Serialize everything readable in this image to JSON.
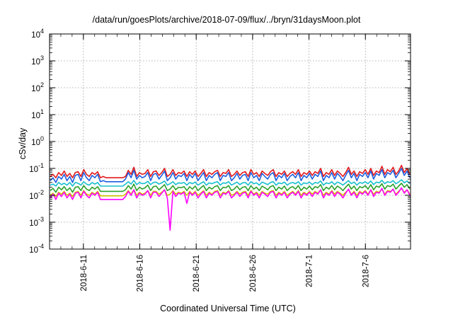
{
  "chart_data": {
    "type": "line",
    "title": "/data/run/goesPlots/archive/2018-07-09/flux/../bryn/31daysMoon.plot",
    "xlabel": "Coordinated Universal Time (UTC)",
    "ylabel": "cSv/day",
    "y_scale": "log",
    "ylim": [
      0.0001,
      10000
    ],
    "xlim": [
      "2018-06-08",
      "2018-07-10"
    ],
    "grid": true,
    "y_ticks": [
      {
        "base": "10",
        "exp": "-4",
        "value": 0.0001
      },
      {
        "base": "10",
        "exp": "-3",
        "value": 0.001
      },
      {
        "base": "10",
        "exp": "-2",
        "value": 0.01
      },
      {
        "base": "10",
        "exp": "-1",
        "value": 0.1
      },
      {
        "base": "10",
        "exp": "0",
        "value": 1
      },
      {
        "base": "10",
        "exp": "1",
        "value": 10
      },
      {
        "base": "10",
        "exp": "2",
        "value": 100
      },
      {
        "base": "10",
        "exp": "3",
        "value": 1000
      },
      {
        "base": "10",
        "exp": "4",
        "value": 10000
      }
    ],
    "x_ticks": [
      {
        "label": "2018-6-11",
        "date": "2018-06-11"
      },
      {
        "label": "2018-6-16",
        "date": "2018-06-16"
      },
      {
        "label": "2018-6-21",
        "date": "2018-06-21"
      },
      {
        "label": "2018-6-26",
        "date": "2018-06-26"
      },
      {
        "label": "2018-7-1",
        "date": "2018-07-01"
      },
      {
        "label": "2018-7-6",
        "date": "2018-07-06"
      }
    ],
    "series": [
      {
        "color": "#e31a1c",
        "values": [
          0.05,
          0.06,
          0.045,
          0.07,
          0.055,
          0.08,
          0.05,
          0.065,
          0.045,
          0.07,
          0.075,
          0.05,
          0.09,
          0.06,
          0.05,
          0.07,
          0.06,
          0.075,
          0.045,
          0.05,
          0.045,
          0.045,
          0.045,
          0.045,
          0.045,
          0.045,
          0.045,
          0.05,
          0.085,
          0.06,
          0.11,
          0.05,
          0.07,
          0.06,
          0.065,
          0.09,
          0.05,
          0.075,
          0.08,
          0.055,
          0.07,
          0.1,
          0.05,
          0.06,
          0.09,
          0.055,
          0.07,
          0.065,
          0.08,
          0.05,
          0.075,
          0.06,
          0.08,
          0.05,
          0.065,
          0.09,
          0.05,
          0.07,
          0.06,
          0.075,
          0.085,
          0.05,
          0.07,
          0.065,
          0.09,
          0.05,
          0.06,
          0.08,
          0.055,
          0.07,
          0.075,
          0.05,
          0.09,
          0.06,
          0.07,
          0.05,
          0.08,
          0.065,
          0.055,
          0.075,
          0.09,
          0.05,
          0.07,
          0.06,
          0.08,
          0.05,
          0.065,
          0.075,
          0.06,
          0.09,
          0.05,
          0.07,
          0.06,
          0.08,
          0.055,
          0.075,
          0.065,
          0.1,
          0.05,
          0.07,
          0.06,
          0.09,
          0.055,
          0.08,
          0.065,
          0.05,
          0.07,
          0.11,
          0.06,
          0.08,
          0.05,
          0.075,
          0.065,
          0.09,
          0.06,
          0.1,
          0.055,
          0.08,
          0.07,
          0.12,
          0.06,
          0.09,
          0.075,
          0.11,
          0.06,
          0.08,
          0.13,
          0.07,
          0.1,
          0.06
        ]
      },
      {
        "color": "#1f5fe0",
        "values": [
          0.035,
          0.045,
          0.03,
          0.05,
          0.04,
          0.06,
          0.035,
          0.05,
          0.03,
          0.055,
          0.06,
          0.035,
          0.07,
          0.045,
          0.035,
          0.055,
          0.045,
          0.06,
          0.032,
          0.035,
          0.032,
          0.032,
          0.032,
          0.032,
          0.032,
          0.032,
          0.032,
          0.04,
          0.07,
          0.045,
          0.085,
          0.04,
          0.055,
          0.045,
          0.05,
          0.07,
          0.035,
          0.06,
          0.065,
          0.04,
          0.055,
          0.08,
          0.035,
          0.045,
          0.07,
          0.04,
          0.055,
          0.05,
          0.065,
          0.035,
          0.06,
          0.045,
          0.065,
          0.035,
          0.05,
          0.07,
          0.035,
          0.055,
          0.045,
          0.06,
          0.07,
          0.035,
          0.055,
          0.05,
          0.07,
          0.035,
          0.045,
          0.065,
          0.04,
          0.055,
          0.06,
          0.035,
          0.07,
          0.045,
          0.055,
          0.035,
          0.065,
          0.05,
          0.04,
          0.06,
          0.07,
          0.035,
          0.055,
          0.045,
          0.065,
          0.035,
          0.05,
          0.06,
          0.045,
          0.07,
          0.035,
          0.055,
          0.045,
          0.065,
          0.04,
          0.06,
          0.05,
          0.08,
          0.035,
          0.055,
          0.045,
          0.07,
          0.04,
          0.065,
          0.05,
          0.035,
          0.055,
          0.085,
          0.045,
          0.065,
          0.035,
          0.06,
          0.05,
          0.07,
          0.045,
          0.08,
          0.04,
          0.065,
          0.055,
          0.09,
          0.045,
          0.07,
          0.06,
          0.085,
          0.045,
          0.065,
          0.1,
          0.055,
          0.08,
          0.045
        ]
      },
      {
        "color": "#17becf",
        "values": [
          0.024,
          0.026,
          0.022,
          0.03,
          0.025,
          0.028,
          0.024,
          0.03,
          0.022,
          0.03,
          0.028,
          0.024,
          0.032,
          0.026,
          0.024,
          0.03,
          0.026,
          0.03,
          0.022,
          0.022,
          0.022,
          0.022,
          0.022,
          0.022,
          0.022,
          0.022,
          0.022,
          0.026,
          0.032,
          0.026,
          0.036,
          0.025,
          0.03,
          0.027,
          0.028,
          0.033,
          0.025,
          0.03,
          0.031,
          0.026,
          0.029,
          0.034,
          0.024,
          0.027,
          0.032,
          0.025,
          0.029,
          0.028,
          0.03,
          0.024,
          0.03,
          0.027,
          0.031,
          0.024,
          0.028,
          0.032,
          0.024,
          0.029,
          0.027,
          0.03,
          0.032,
          0.024,
          0.029,
          0.028,
          0.032,
          0.024,
          0.027,
          0.031,
          0.025,
          0.029,
          0.03,
          0.024,
          0.032,
          0.027,
          0.029,
          0.024,
          0.031,
          0.028,
          0.025,
          0.03,
          0.032,
          0.024,
          0.029,
          0.027,
          0.031,
          0.024,
          0.028,
          0.03,
          0.027,
          0.032,
          0.024,
          0.029,
          0.027,
          0.031,
          0.025,
          0.03,
          0.028,
          0.034,
          0.024,
          0.029,
          0.027,
          0.032,
          0.025,
          0.031,
          0.028,
          0.024,
          0.029,
          0.035,
          0.027,
          0.031,
          0.024,
          0.03,
          0.028,
          0.032,
          0.027,
          0.034,
          0.025,
          0.031,
          0.029,
          0.036,
          0.027,
          0.032,
          0.03,
          0.035,
          0.027,
          0.031,
          0.038,
          0.029,
          0.034,
          0.027
        ]
      },
      {
        "color": "#2ca02c",
        "values": [
          0.015,
          0.018,
          0.013,
          0.02,
          0.016,
          0.021,
          0.015,
          0.019,
          0.013,
          0.02,
          0.021,
          0.015,
          0.023,
          0.017,
          0.015,
          0.02,
          0.017,
          0.021,
          0.014,
          0.014,
          0.014,
          0.014,
          0.014,
          0.014,
          0.014,
          0.014,
          0.014,
          0.016,
          0.023,
          0.017,
          0.026,
          0.015,
          0.02,
          0.017,
          0.019,
          0.024,
          0.015,
          0.021,
          0.022,
          0.016,
          0.02,
          0.025,
          0.015,
          0.017,
          0.023,
          0.016,
          0.02,
          0.019,
          0.021,
          0.015,
          0.021,
          0.017,
          0.022,
          0.015,
          0.019,
          0.023,
          0.015,
          0.02,
          0.017,
          0.021,
          0.023,
          0.015,
          0.02,
          0.019,
          0.023,
          0.015,
          0.017,
          0.022,
          0.016,
          0.02,
          0.021,
          0.015,
          0.023,
          0.017,
          0.02,
          0.015,
          0.022,
          0.019,
          0.016,
          0.021,
          0.023,
          0.015,
          0.02,
          0.017,
          0.022,
          0.015,
          0.019,
          0.021,
          0.017,
          0.023,
          0.015,
          0.02,
          0.017,
          0.022,
          0.016,
          0.021,
          0.019,
          0.025,
          0.015,
          0.02,
          0.017,
          0.023,
          0.016,
          0.022,
          0.019,
          0.015,
          0.02,
          0.026,
          0.017,
          0.022,
          0.015,
          0.021,
          0.019,
          0.023,
          0.017,
          0.025,
          0.016,
          0.022,
          0.02,
          0.027,
          0.017,
          0.023,
          0.021,
          0.026,
          0.017,
          0.022,
          0.028,
          0.02,
          0.025,
          0.017
        ]
      },
      {
        "color": "#d4c400",
        "values": [
          0.01,
          0.012,
          0.009,
          0.013,
          0.011,
          0.014,
          0.01,
          0.012,
          0.009,
          0.013,
          0.014,
          0.01,
          0.015,
          0.011,
          0.01,
          0.013,
          0.011,
          0.014,
          0.0095,
          0.0095,
          0.0095,
          0.0095,
          0.0095,
          0.0095,
          0.0095,
          0.0095,
          0.0095,
          0.011,
          0.015,
          0.011,
          0.016,
          0.01,
          0.013,
          0.011,
          0.012,
          0.015,
          0.01,
          0.014,
          0.014,
          0.011,
          0.013,
          0.016,
          0.01,
          0.011,
          0.015,
          0.011,
          0.013,
          0.012,
          0.014,
          0.01,
          0.014,
          0.011,
          0.014,
          0.01,
          0.012,
          0.015,
          0.01,
          0.013,
          0.011,
          0.014,
          0.015,
          0.01,
          0.013,
          0.012,
          0.015,
          0.01,
          0.011,
          0.014,
          0.011,
          0.013,
          0.014,
          0.01,
          0.015,
          0.011,
          0.013,
          0.01,
          0.014,
          0.012,
          0.011,
          0.014,
          0.015,
          0.01,
          0.013,
          0.011,
          0.014,
          0.01,
          0.012,
          0.014,
          0.011,
          0.015,
          0.01,
          0.013,
          0.011,
          0.014,
          0.011,
          0.014,
          0.012,
          0.016,
          0.01,
          0.013,
          0.011,
          0.015,
          0.011,
          0.014,
          0.012,
          0.01,
          0.013,
          0.016,
          0.011,
          0.014,
          0.01,
          0.014,
          0.012,
          0.015,
          0.011,
          0.016,
          0.011,
          0.014,
          0.013,
          0.017,
          0.011,
          0.015,
          0.014,
          0.016,
          0.011,
          0.014,
          0.018,
          0.013,
          0.016,
          0.011
        ]
      },
      {
        "color": "#ff00ff",
        "values": [
          0.008,
          0.011,
          0.007,
          0.012,
          0.009,
          0.013,
          0.008,
          0.011,
          0.007,
          0.012,
          0.013,
          0.008,
          0.014,
          0.01,
          0.008,
          0.012,
          0.01,
          0.013,
          0.007,
          0.007,
          0.007,
          0.007,
          0.007,
          0.007,
          0.007,
          0.007,
          0.007,
          0.009,
          0.014,
          0.01,
          0.016,
          0.008,
          0.012,
          0.01,
          0.011,
          0.015,
          0.008,
          0.013,
          0.013,
          0.009,
          0.012,
          0.016,
          0.008,
          0.0005,
          0.014,
          0.009,
          0.012,
          0.011,
          0.013,
          0.005,
          0.013,
          0.01,
          0.013,
          0.008,
          0.011,
          0.014,
          0.008,
          0.012,
          0.01,
          0.013,
          0.014,
          0.008,
          0.012,
          0.011,
          0.014,
          0.008,
          0.01,
          0.013,
          0.009,
          0.012,
          0.013,
          0.008,
          0.014,
          0.01,
          0.012,
          0.008,
          0.013,
          0.011,
          0.009,
          0.013,
          0.014,
          0.008,
          0.012,
          0.01,
          0.013,
          0.008,
          0.011,
          0.013,
          0.01,
          0.014,
          0.008,
          0.012,
          0.01,
          0.013,
          0.009,
          0.013,
          0.011,
          0.016,
          0.008,
          0.012,
          0.01,
          0.014,
          0.009,
          0.013,
          0.011,
          0.008,
          0.012,
          0.017,
          0.01,
          0.013,
          0.008,
          0.013,
          0.011,
          0.014,
          0.01,
          0.016,
          0.009,
          0.013,
          0.012,
          0.018,
          0.01,
          0.014,
          0.013,
          0.017,
          0.01,
          0.013,
          0.019,
          0.012,
          0.016,
          0.01
        ]
      }
    ]
  }
}
